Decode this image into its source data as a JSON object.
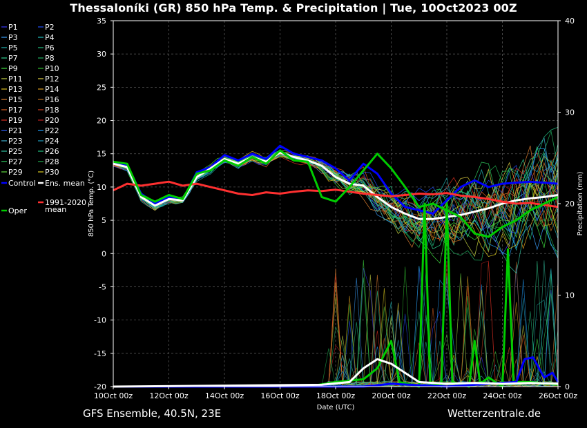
{
  "title": "Thessaloníki  (GR)  850 hPa Temp. & Precipitation | Tue, 10Oct2023 00Z",
  "footer_left": "GFS Ensemble, 40.5N, 23E",
  "footer_right": "Wetterzentrale.de",
  "colors": {
    "background": "#000000",
    "grid": "#555555",
    "control": "#0000ff",
    "ens_mean": "#ffffff",
    "climate_mean": "#ff3030",
    "oper": "#00cc00"
  },
  "chart_data": {
    "type": "line",
    "xlabel": "Date (UTC)",
    "ylabel": "850 hPa Temp. (°C)",
    "y2label": "Precipitation (mm)",
    "ylim": [
      -20,
      35
    ],
    "y2lim": [
      0,
      40
    ],
    "xlim_days": [
      0,
      16
    ],
    "yticks": [
      "35",
      "30",
      "25",
      "20",
      "15",
      "10",
      "5",
      "0",
      "-5",
      "-10",
      "-15",
      "-20"
    ],
    "y2ticks": [
      "40",
      "30",
      "20",
      "10",
      "0"
    ],
    "xticks": [
      "10Oct 00z",
      "12Oct 00z",
      "14Oct 00z",
      "16Oct 00z",
      "18Oct 00z",
      "20Oct 00z",
      "22Oct 00z",
      "24Oct 00z",
      "26Oct 00z"
    ],
    "grid": true,
    "legend": [
      [
        "P1",
        "#3a3aff"
      ],
      [
        "P2",
        "#2050ff"
      ],
      [
        "P3",
        "#3aa0ff"
      ],
      [
        "P4",
        "#20c0c0"
      ],
      [
        "P5",
        "#20b0b0"
      ],
      [
        "P6",
        "#20c080"
      ],
      [
        "P7",
        "#30d090"
      ],
      [
        "P8",
        "#20b060"
      ],
      [
        "P9",
        "#40e040"
      ],
      [
        "P10",
        "#30c030"
      ],
      [
        "P11",
        "#c0d040"
      ],
      [
        "P12",
        "#e0d040"
      ],
      [
        "P13",
        "#e0c020"
      ],
      [
        "P14",
        "#e0a020"
      ],
      [
        "P15",
        "#e08030"
      ],
      [
        "P16",
        "#c07020"
      ],
      [
        "P17",
        "#e06020"
      ],
      [
        "P18",
        "#d04020"
      ],
      [
        "P19",
        "#e03020"
      ],
      [
        "P20",
        "#c02020"
      ],
      [
        "P21",
        "#3060ff"
      ],
      [
        "P22",
        "#20a0ff"
      ],
      [
        "P23",
        "#40b0d0"
      ],
      [
        "P24",
        "#20a0c0"
      ],
      [
        "P25",
        "#30c0a0"
      ],
      [
        "P26",
        "#20c080"
      ],
      [
        "P27",
        "#30d060"
      ],
      [
        "P28",
        "#20b050"
      ],
      [
        "P29",
        "#60e040"
      ],
      [
        "P30",
        "#e0d020"
      ],
      [
        "Control",
        "#0000ff"
      ],
      [
        "Ens. mean",
        "#ffffff"
      ],
      [
        "1991-2020 mean",
        "#ff3030"
      ],
      [
        "Oper",
        "#00cc00"
      ]
    ],
    "legend_layout": "left column, two sub-columns",
    "series": [
      {
        "name": "Control",
        "unit": "°C",
        "values": [
          [
            0,
            13.7
          ],
          [
            0.5,
            13.3
          ],
          [
            1,
            9.0
          ],
          [
            1.5,
            7.5
          ],
          [
            2,
            8.5
          ],
          [
            2.5,
            8.0
          ],
          [
            3,
            12.2
          ],
          [
            3.5,
            13.0
          ],
          [
            4,
            14.8
          ],
          [
            4.5,
            14.0
          ],
          [
            5,
            15.0
          ],
          [
            5.5,
            14.2
          ],
          [
            6,
            16.2
          ],
          [
            6.5,
            15.0
          ],
          [
            7,
            14.5
          ],
          [
            7.5,
            14.0
          ],
          [
            8,
            12.8
          ],
          [
            8.5,
            11.0
          ],
          [
            9,
            13.5
          ],
          [
            9.5,
            12.0
          ],
          [
            10,
            9.0
          ],
          [
            10.5,
            7.0
          ],
          [
            11,
            6.5
          ],
          [
            11.5,
            6.0
          ],
          [
            12,
            8.0
          ],
          [
            12.5,
            10.0
          ],
          [
            13,
            11.0
          ],
          [
            13.5,
            10.0
          ],
          [
            14,
            10.5
          ],
          [
            15,
            10.8
          ],
          [
            16,
            10.5
          ]
        ]
      },
      {
        "name": "Ens. mean",
        "unit": "°C",
        "values": [
          [
            0,
            13.5
          ],
          [
            0.5,
            13.0
          ],
          [
            1,
            8.5
          ],
          [
            1.5,
            7.2
          ],
          [
            2,
            8.2
          ],
          [
            2.5,
            8.0
          ],
          [
            3,
            11.5
          ],
          [
            3.5,
            12.8
          ],
          [
            4,
            14.2
          ],
          [
            4.5,
            13.5
          ],
          [
            5,
            14.5
          ],
          [
            5.5,
            13.8
          ],
          [
            6,
            15.2
          ],
          [
            6.5,
            14.5
          ],
          [
            7,
            14.0
          ],
          [
            7.5,
            13.2
          ],
          [
            8,
            11.5
          ],
          [
            8.5,
            10.5
          ],
          [
            9,
            10.2
          ],
          [
            9.5,
            8.5
          ],
          [
            10,
            7.0
          ],
          [
            10.5,
            6.0
          ],
          [
            11,
            5.2
          ],
          [
            11.5,
            5.2
          ],
          [
            12,
            5.5
          ],
          [
            12.5,
            5.8
          ],
          [
            13,
            6.3
          ],
          [
            13.5,
            6.8
          ],
          [
            14,
            7.5
          ],
          [
            14.5,
            8.0
          ],
          [
            15,
            8.3
          ],
          [
            15.5,
            8.5
          ],
          [
            16,
            8.8
          ]
        ]
      },
      {
        "name": "1991-2020 mean",
        "unit": "°C",
        "values": [
          [
            0,
            9.5
          ],
          [
            0.5,
            10.5
          ],
          [
            1,
            10.2
          ],
          [
            1.5,
            10.5
          ],
          [
            2,
            10.8
          ],
          [
            2.5,
            10.2
          ],
          [
            3,
            10.5
          ],
          [
            3.5,
            10.0
          ],
          [
            4,
            9.5
          ],
          [
            4.5,
            9.0
          ],
          [
            5,
            8.8
          ],
          [
            5.5,
            9.2
          ],
          [
            6,
            9.0
          ],
          [
            6.5,
            9.3
          ],
          [
            7,
            9.5
          ],
          [
            7.5,
            9.4
          ],
          [
            8,
            9.6
          ],
          [
            8.5,
            9.3
          ],
          [
            9,
            9.0
          ],
          [
            9.5,
            8.8
          ],
          [
            10,
            8.6
          ],
          [
            10.5,
            8.8
          ],
          [
            11,
            9.0
          ],
          [
            11.5,
            8.9
          ],
          [
            12,
            9.1
          ],
          [
            12.5,
            8.7
          ],
          [
            13,
            8.5
          ],
          [
            13.5,
            8.2
          ],
          [
            14,
            7.8
          ],
          [
            14.5,
            7.5
          ],
          [
            15,
            7.6
          ],
          [
            15.5,
            7.3
          ],
          [
            16,
            7.0
          ]
        ]
      },
      {
        "name": "Oper",
        "unit": "°C",
        "values": [
          [
            0,
            13.8
          ],
          [
            0.5,
            13.5
          ],
          [
            1,
            8.8
          ],
          [
            1.5,
            7.8
          ],
          [
            2,
            8.8
          ],
          [
            2.5,
            8.2
          ],
          [
            3,
            12.0
          ],
          [
            3.5,
            12.5
          ],
          [
            4,
            14.0
          ],
          [
            4.5,
            13.2
          ],
          [
            5,
            14.5
          ],
          [
            5.5,
            13.5
          ],
          [
            6,
            15.5
          ],
          [
            6.5,
            14.0
          ],
          [
            7,
            13.8
          ],
          [
            7.5,
            8.5
          ],
          [
            8,
            7.8
          ],
          [
            8.5,
            10.0
          ],
          [
            9,
            12.5
          ],
          [
            9.5,
            15.0
          ],
          [
            10,
            12.8
          ],
          [
            10.5,
            10.0
          ],
          [
            11,
            7.0
          ],
          [
            11.5,
            7.5
          ],
          [
            12,
            6.5
          ],
          [
            12.5,
            5.5
          ],
          [
            13,
            3.0
          ],
          [
            13.5,
            2.5
          ],
          [
            14,
            4.0
          ],
          [
            14.5,
            5.0
          ],
          [
            15,
            6.5
          ],
          [
            15.5,
            7.5
          ],
          [
            16,
            8.5
          ]
        ]
      },
      {
        "name": "Oper precipitation",
        "unit": "mm",
        "values": [
          [
            0,
            0
          ],
          [
            7,
            0
          ],
          [
            8,
            0.5
          ],
          [
            9,
            0.8
          ],
          [
            9.5,
            2.0
          ],
          [
            10,
            5.0
          ],
          [
            10.3,
            0.5
          ],
          [
            11,
            0
          ],
          [
            11.2,
            20.0
          ],
          [
            11.4,
            0.5
          ],
          [
            11.8,
            0
          ],
          [
            12,
            20.0
          ],
          [
            12.2,
            0.5
          ],
          [
            12.8,
            0
          ],
          [
            13,
            5.0
          ],
          [
            13.2,
            0.3
          ],
          [
            13.5,
            1.0
          ],
          [
            14,
            0
          ],
          [
            14.2,
            15.0
          ],
          [
            14.4,
            0.5
          ],
          [
            15,
            0.5
          ],
          [
            16,
            0.2
          ]
        ]
      },
      {
        "name": "Control precipitation",
        "unit": "mm",
        "values": [
          [
            0,
            0
          ],
          [
            9,
            0
          ],
          [
            10,
            0.3
          ],
          [
            12,
            0
          ],
          [
            14.5,
            0.5
          ],
          [
            14.8,
            3.0
          ],
          [
            15.1,
            3.2
          ],
          [
            15.5,
            1.0
          ],
          [
            15.8,
            1.5
          ],
          [
            16,
            0.5
          ]
        ]
      },
      {
        "name": "Ens. mean precipitation",
        "unit": "mm",
        "values": [
          [
            0,
            0
          ],
          [
            7.5,
            0.2
          ],
          [
            8.5,
            0.5
          ],
          [
            9,
            2.0
          ],
          [
            9.5,
            3.0
          ],
          [
            10,
            2.5
          ],
          [
            10.5,
            1.5
          ],
          [
            11,
            0.5
          ],
          [
            12,
            0.3
          ],
          [
            13,
            0.4
          ],
          [
            14,
            0.3
          ],
          [
            15,
            0.4
          ],
          [
            16,
            0.3
          ]
        ]
      }
    ]
  }
}
